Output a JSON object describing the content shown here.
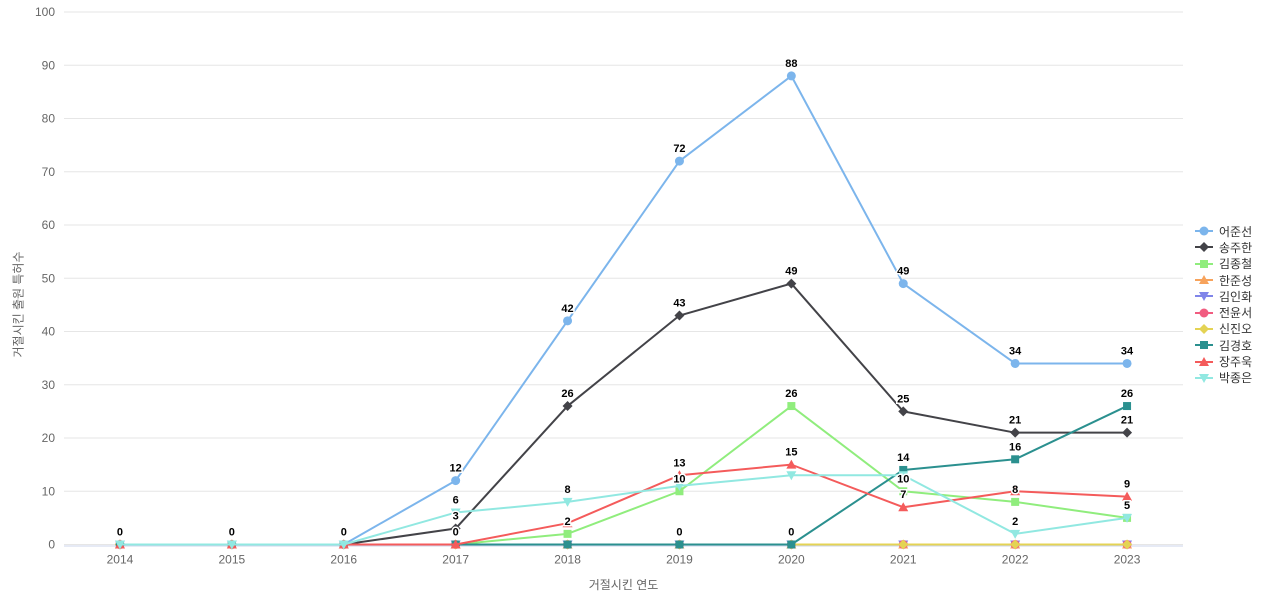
{
  "chart_data": {
    "type": "line",
    "title": "",
    "xlabel": "거절시킨 연도",
    "ylabel": "거절시킨 출원 특허수",
    "x": [
      "2014",
      "2015",
      "2016",
      "2017",
      "2018",
      "2019",
      "2020",
      "2021",
      "2022",
      "2023"
    ],
    "ylim": [
      0,
      100
    ],
    "ytick_step": 10,
    "grid": "horizontal-only",
    "legend_position": "right",
    "colors": {
      "grid": "#e6e6e6",
      "x_axis_line": "#ccd6eb",
      "tick_label": "#666666",
      "axis_title": "#666666",
      "legend_text": "#333333",
      "data_label": "#000000"
    },
    "series": [
      {
        "name": "어준선",
        "color": "#7cb5ec",
        "symbol": "circle",
        "values": [
          0,
          0,
          0,
          12,
          42,
          72,
          88,
          49,
          34,
          34
        ],
        "label_visible": [
          1,
          1,
          1,
          1,
          1,
          1,
          1,
          1,
          1,
          1
        ]
      },
      {
        "name": "송주한",
        "color": "#434348",
        "symbol": "diamond",
        "values": [
          0,
          0,
          0,
          3,
          26,
          43,
          49,
          25,
          21,
          21
        ],
        "label_visible": [
          0,
          0,
          0,
          1,
          1,
          1,
          1,
          1,
          1,
          1
        ]
      },
      {
        "name": "김종철",
        "color": "#90ed7d",
        "symbol": "square",
        "values": [
          0,
          0,
          0,
          0,
          2,
          10,
          26,
          10,
          8,
          5
        ],
        "label_visible": [
          0,
          0,
          0,
          0,
          1,
          1,
          1,
          1,
          1,
          1
        ]
      },
      {
        "name": "한준성",
        "color": "#f7a35c",
        "symbol": "triangle",
        "values": [
          0,
          0,
          0,
          0,
          0,
          0,
          0,
          0,
          0,
          0
        ],
        "label_visible": [
          0,
          0,
          0,
          0,
          0,
          0,
          0,
          0,
          0,
          0
        ]
      },
      {
        "name": "김인화",
        "color": "#8085e9",
        "symbol": "triangle-down",
        "values": [
          0,
          0,
          0,
          0,
          0,
          0,
          0,
          0,
          0,
          0
        ],
        "label_visible": [
          0,
          0,
          0,
          0,
          0,
          0,
          0,
          0,
          0,
          0
        ]
      },
      {
        "name": "전윤서",
        "color": "#f15c80",
        "symbol": "circle",
        "values": [
          0,
          0,
          0,
          0,
          0,
          0,
          0,
          0,
          0,
          0
        ],
        "label_visible": [
          0,
          0,
          0,
          0,
          0,
          0,
          0,
          0,
          0,
          0
        ]
      },
      {
        "name": "신진오",
        "color": "#e4d354",
        "symbol": "diamond",
        "values": [
          0,
          0,
          0,
          0,
          0,
          0,
          0,
          0,
          0,
          0
        ],
        "label_visible": [
          0,
          0,
          0,
          0,
          0,
          0,
          0,
          0,
          0,
          0
        ]
      },
      {
        "name": "김경호",
        "color": "#2b908f",
        "symbol": "square",
        "values": [
          0,
          0,
          0,
          0,
          0,
          0,
          0,
          14,
          16,
          26
        ],
        "label_visible": [
          0,
          0,
          0,
          1,
          0,
          1,
          1,
          1,
          1,
          1
        ]
      },
      {
        "name": "장주욱",
        "color": "#f45b5b",
        "symbol": "triangle",
        "values": [
          0,
          0,
          0,
          0,
          4,
          13,
          15,
          7,
          10,
          9
        ],
        "label_visible": [
          0,
          0,
          0,
          0,
          0,
          1,
          1,
          1,
          0,
          1
        ]
      },
      {
        "name": "박종은",
        "color": "#91e8e1",
        "symbol": "triangle-down",
        "values": [
          0,
          0,
          0,
          6,
          8,
          11,
          13,
          13,
          2,
          5
        ],
        "label_visible": [
          0,
          0,
          0,
          1,
          1,
          0,
          0,
          0,
          1,
          0
        ]
      }
    ]
  }
}
